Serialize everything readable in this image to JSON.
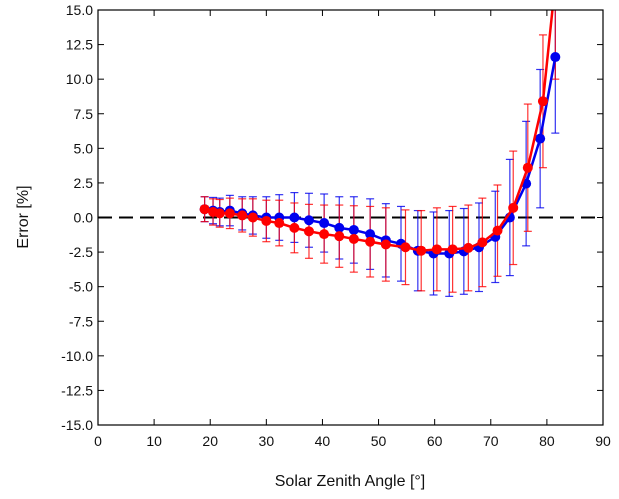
{
  "chart_data": {
    "type": "line",
    "title": "",
    "xlabel": "Solar Zenith Angle [°]",
    "ylabel": "Error [%]",
    "xlim": [
      0,
      90
    ],
    "ylim": [
      -15,
      15
    ],
    "xticks": [
      "0",
      "10",
      "20",
      "30",
      "40",
      "50",
      "60",
      "70",
      "80",
      "90"
    ],
    "yticks": [
      "-15.0",
      "-12.5",
      "-10.0",
      "-7.5",
      "-5.0",
      "-2.5",
      "0.0",
      "2.5",
      "5.0",
      "7.5",
      "10.0",
      "12.5",
      "15.0"
    ],
    "grid": false,
    "reference_line": {
      "y": 0,
      "style": "dashed",
      "color": "#000000"
    },
    "series": [
      {
        "color": "#0000ee",
        "x": [
          19,
          20.5,
          21.7,
          23.5,
          25.7,
          27.6,
          30,
          32.3,
          35,
          37.6,
          40.3,
          43,
          45.6,
          48.5,
          51.3,
          54,
          57,
          59.8,
          62.6,
          65.2,
          67.9,
          70.8,
          73.4,
          76.3,
          78.8,
          81.5
        ],
        "y": [
          0.6,
          0.5,
          0.4,
          0.5,
          0.3,
          0.15,
          0,
          0,
          0,
          -0.2,
          -0.4,
          -0.75,
          -0.9,
          -1.2,
          -1.65,
          -1.9,
          -2.4,
          -2.6,
          -2.6,
          -2.45,
          -2.15,
          -1.4,
          0,
          2.45,
          5.7,
          11.6
        ],
        "error": [
          0.9,
          0.95,
          1,
          1.1,
          1.2,
          1.35,
          1.5,
          1.65,
          1.8,
          1.95,
          2.1,
          2.25,
          2.4,
          2.55,
          2.65,
          2.7,
          2.9,
          3,
          3.1,
          3.1,
          3.2,
          3.3,
          4.2,
          4.5,
          5,
          5.5
        ]
      },
      {
        "color": "#ff0000",
        "x": [
          19,
          20.5,
          21.7,
          23.5,
          25.7,
          27.6,
          30,
          32.3,
          35,
          37.6,
          40.3,
          43,
          45.6,
          48.5,
          51.3,
          54.8,
          57.6,
          60.4,
          63.2,
          66,
          68.5,
          71.2,
          74,
          76.6,
          79.3,
          81.5
        ],
        "y": [
          0.6,
          0.4,
          0.3,
          0.3,
          0.15,
          0,
          -0.25,
          -0.4,
          -0.75,
          -1,
          -1.2,
          -1.35,
          -1.55,
          -1.75,
          -1.95,
          -2.15,
          -2.4,
          -2.3,
          -2.3,
          -2.2,
          -1.8,
          -0.95,
          0.7,
          3.6,
          8.4,
          17
        ],
        "error": [
          0.9,
          0.95,
          1,
          1.1,
          1.2,
          1.35,
          1.5,
          1.65,
          1.8,
          1.95,
          2.1,
          2.25,
          2.4,
          2.55,
          2.65,
          2.7,
          2.9,
          3,
          3.1,
          3.1,
          3.2,
          3.3,
          4.1,
          4.6,
          4.8,
          7
        ]
      }
    ]
  }
}
